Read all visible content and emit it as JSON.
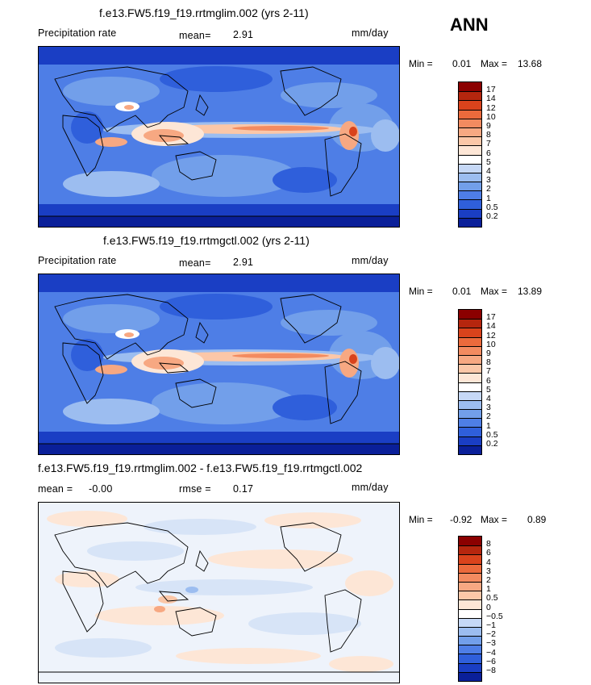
{
  "season": "ANN",
  "panels": [
    {
      "id": "top",
      "title": "f.e13.FW5.f19_f19.rrtmglim.002 (yrs 2-11)",
      "left_label": "Precipitation rate",
      "mid_label": "mean=",
      "mid_value": "2.91",
      "units": "mm/day",
      "min_label": "Min =",
      "min_value": "0.01",
      "max_label": "Max =",
      "max_value": "13.68",
      "colorbar": {
        "levels": [
          "17",
          "14",
          "12",
          "10",
          "9",
          "8",
          "7",
          "6",
          "5",
          "4",
          "3",
          "2",
          "1",
          "0.5",
          "0.2"
        ],
        "colors": [
          "#8b0000",
          "#b5260e",
          "#d9431c",
          "#eb6a3c",
          "#f38b60",
          "#f7a882",
          "#fbc7a8",
          "#fde6d6",
          "#ffffff",
          "#c6d8f6",
          "#9cbdf0",
          "#729fea",
          "#4e7ee6",
          "#2f5fdb",
          "#1a3ec4",
          "#0a1f99"
        ]
      }
    },
    {
      "id": "middle",
      "title": "f.e13.FW5.f19_f19.rrtmgctl.002 (yrs 2-11)",
      "left_label": "Precipitation rate",
      "mid_label": "mean=",
      "mid_value": "2.91",
      "units": "mm/day",
      "min_label": "Min =",
      "min_value": "0.01",
      "max_label": "Max =",
      "max_value": "13.89",
      "colorbar": {
        "levels": [
          "17",
          "14",
          "12",
          "10",
          "9",
          "8",
          "7",
          "6",
          "5",
          "4",
          "3",
          "2",
          "1",
          "0.5",
          "0.2"
        ],
        "colors": [
          "#8b0000",
          "#b5260e",
          "#d9431c",
          "#eb6a3c",
          "#f38b60",
          "#f7a882",
          "#fbc7a8",
          "#fde6d6",
          "#ffffff",
          "#c6d8f6",
          "#9cbdf0",
          "#729fea",
          "#4e7ee6",
          "#2f5fdb",
          "#1a3ec4",
          "#0a1f99"
        ]
      }
    },
    {
      "id": "bottom",
      "title": "f.e13.FW5.f19_f19.rrtmglim.002 - f.e13.FW5.f19_f19.rrtmgctl.002",
      "left_label": "mean =",
      "left_value": "-0.00",
      "mid_label": "rmse =",
      "mid_value": "0.17",
      "units": "mm/day",
      "min_label": "Min =",
      "min_value": "-0.92",
      "max_label": "Max =",
      "max_value": "0.89",
      "colorbar": {
        "levels": [
          "8",
          "6",
          "4",
          "3",
          "2",
          "1",
          "0.5",
          "0",
          "-0.5",
          "-1",
          "-2",
          "-3",
          "-4",
          "-6",
          "-8"
        ],
        "colors": [
          "#8b0000",
          "#b5260e",
          "#d9431c",
          "#eb6a3c",
          "#f38b60",
          "#f7a882",
          "#fbc7a8",
          "#fde6d6",
          "#ffffff",
          "#c6d8f6",
          "#9cbdf0",
          "#729fea",
          "#4e7ee6",
          "#2f5fdb",
          "#1a3ec4",
          "#0a1f99"
        ]
      }
    }
  ]
}
